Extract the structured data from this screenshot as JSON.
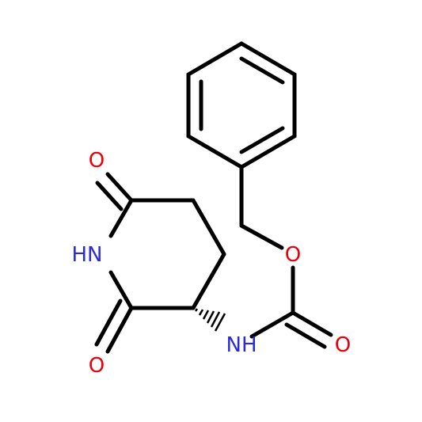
{
  "atoms": {
    "benzyl_oxygen": "O",
    "imide_top_oxygen": "O",
    "imide_nitrogen": "HN",
    "imide_bottom_oxygen": "O",
    "carbamate_nitrogen": "NH",
    "carbonyl_oxygen": "O"
  }
}
